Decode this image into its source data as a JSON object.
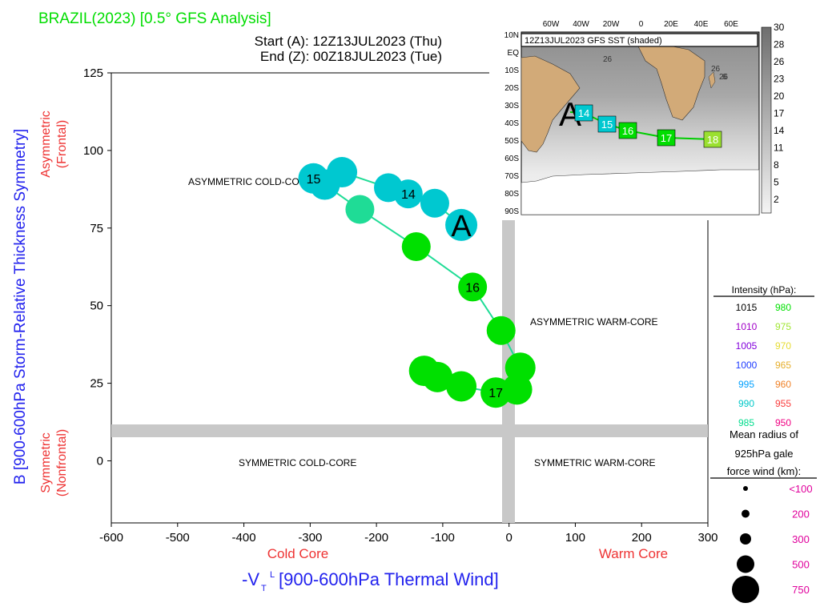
{
  "header": {
    "title": "BRAZIL(2023) [0.5° GFS Analysis]",
    "start": "Start (A): 12Z13JUL2023 (Thu)",
    "end": "End (Z): 00Z18JUL2023 (Tue)"
  },
  "axes": {
    "ylabel": "B [900-600hPa Storm-Relative Thickness Symmetry]",
    "ylabel_top_1": "Asymmetric",
    "ylabel_top_2": "(Frontal)",
    "ylabel_bottom_1": "Symmetric",
    "ylabel_bottom_2": "(Nonfrontal)",
    "xlabel": "-V",
    "xlabel_sub": "T",
    "xlabel_sup": "L",
    "xlabel_rest": " [900-600hPa Thermal Wind]",
    "xlabel_left": "Cold Core",
    "xlabel_right": "Warm Core"
  },
  "quadrants": {
    "asym_cold": "ASYMMETRIC COLD-CORE",
    "asym_warm": "ASYMMETRIC WARM-CORE",
    "sym_cold": "SYMMETRIC COLD-CORE",
    "sym_warm": "SYMMETRIC WARM-CORE"
  },
  "chart_data": {
    "type": "scatter",
    "xlim": [
      -600,
      300
    ],
    "ylim": [
      -20,
      125
    ],
    "xticks": [
      -600,
      -500,
      -400,
      -300,
      -200,
      -100,
      0,
      100,
      200,
      300
    ],
    "yticks": [
      0,
      25,
      50,
      75,
      100,
      125
    ],
    "threshold_b": 10,
    "threshold_vtl": 0,
    "start_marker": "A",
    "points": [
      {
        "x": -72,
        "y": 76,
        "color": "#00c8d0",
        "size": 20,
        "label": "A"
      },
      {
        "x": -112,
        "y": 83,
        "color": "#00c8d0",
        "size": 18
      },
      {
        "x": -152,
        "y": 86,
        "color": "#00c8d0",
        "size": 18,
        "label": "14"
      },
      {
        "x": -182,
        "y": 88,
        "color": "#00c8d0",
        "size": 18
      },
      {
        "x": -252,
        "y": 93,
        "color": "#00c8d0",
        "size": 19
      },
      {
        "x": -295,
        "y": 91,
        "color": "#00c8d0",
        "size": 19,
        "label": "15"
      },
      {
        "x": -278,
        "y": 89,
        "color": "#00c8d0",
        "size": 19
      },
      {
        "x": -225,
        "y": 81,
        "color": "#1fdc96",
        "size": 18
      },
      {
        "x": -140,
        "y": 69,
        "color": "#00e000",
        "size": 18
      },
      {
        "x": -55,
        "y": 56,
        "color": "#00e000",
        "size": 18,
        "label": "16"
      },
      {
        "x": -12,
        "y": 42,
        "color": "#00e000",
        "size": 18
      },
      {
        "x": 17,
        "y": 30,
        "color": "#00e000",
        "size": 19
      },
      {
        "x": 12,
        "y": 23,
        "color": "#00e000",
        "size": 19
      },
      {
        "x": -20,
        "y": 22,
        "color": "#00e000",
        "size": 19,
        "label": "17"
      },
      {
        "x": -72,
        "y": 24,
        "color": "#00e000",
        "size": 19
      },
      {
        "x": -108,
        "y": 27,
        "color": "#00e000",
        "size": 19
      },
      {
        "x": -128,
        "y": 29,
        "color": "#00e000",
        "size": 19
      }
    ]
  },
  "inset": {
    "title": "12Z13JUL2023 GFS SST (shaded)",
    "lon_labels": [
      "60W",
      "40W",
      "20W",
      "0",
      "20E",
      "40E",
      "60E"
    ],
    "lat_labels": [
      "10N",
      "EQ",
      "10S",
      "20S",
      "30S",
      "40S",
      "50S",
      "60S",
      "70S",
      "80S",
      "90S"
    ],
    "colorbar_labels": [
      "30",
      "28",
      "26",
      "23",
      "20",
      "17",
      "14",
      "11",
      "8",
      "5",
      "2"
    ],
    "track_start": "A",
    "sst_labels": [
      "26",
      "26",
      "26",
      "6"
    ],
    "track_points": [
      {
        "label": "14",
        "color": "#00c8d0"
      },
      {
        "label": "15",
        "color": "#00c8d0"
      },
      {
        "label": "16",
        "color": "#00dd00"
      },
      {
        "label": "17",
        "color": "#00dd00"
      },
      {
        "label": "18",
        "color": "#9be030"
      }
    ]
  },
  "legend": {
    "intensity_title": "Intensity (hPa):",
    "intensity": [
      {
        "value": "1015",
        "color": "#000000"
      },
      {
        "value": "980",
        "color": "#00e000"
      },
      {
        "value": "1010",
        "color": "#a000c8"
      },
      {
        "value": "975",
        "color": "#a0e632"
      },
      {
        "value": "1005",
        "color": "#8200dc"
      },
      {
        "value": "970",
        "color": "#e6dc32"
      },
      {
        "value": "1000",
        "color": "#1e3cff"
      },
      {
        "value": "965",
        "color": "#e6af2d"
      },
      {
        "value": "995",
        "color": "#00a0ff"
      },
      {
        "value": "960",
        "color": "#f08228"
      },
      {
        "value": "990",
        "color": "#00c8c8"
      },
      {
        "value": "955",
        "color": "#fa3c3c"
      },
      {
        "value": "985",
        "color": "#00dc8c"
      },
      {
        "value": "950",
        "color": "#f00082"
      }
    ],
    "radius_title_1": "Mean radius of",
    "radius_title_2": "925hPa gale",
    "radius_title_3": "force wind (km):",
    "radius": [
      {
        "label": "<100",
        "r": 3
      },
      {
        "label": "200",
        "r": 5
      },
      {
        "label": "300",
        "r": 7
      },
      {
        "label": "500",
        "r": 11
      },
      {
        "label": "750",
        "r": 17
      }
    ],
    "radius_color": "#e0009c"
  },
  "colors": {
    "title": "#00dd00",
    "axis_label": "#2222ee",
    "side_label": "#ee3333",
    "threshold": "#c8c8c8",
    "track_line": "#1fdc96"
  }
}
